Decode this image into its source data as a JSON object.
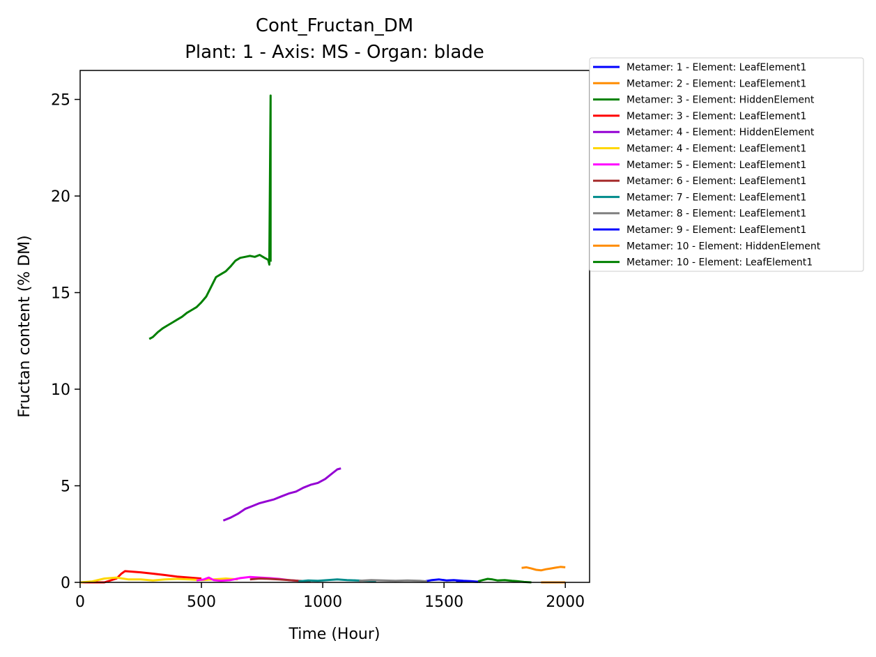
{
  "chart_data": {
    "type": "line",
    "title": "Cont_Fructan_DM",
    "subtitle": "Plant: 1 - Axis: MS - Organ: blade",
    "xlabel": "Time (Hour)",
    "ylabel": "Fructan content (% DM)",
    "xlim": [
      0,
      2100
    ],
    "ylim": [
      0,
      26.5
    ],
    "xticks": [
      0,
      500,
      1000,
      1500,
      2000
    ],
    "yticks": [
      0,
      5,
      10,
      15,
      20,
      25
    ],
    "grid": false,
    "legend_position": "outside-right-top",
    "series": [
      {
        "name": "Metamer: 1 - Element: LeafElement1",
        "color": "#0000ff",
        "x": [
          1420,
          1450,
          1480,
          1510,
          1540,
          1580,
          1610,
          1650
        ],
        "y": [
          0.05,
          0.12,
          0.15,
          0.1,
          0.12,
          0.08,
          0.06,
          0.02
        ]
      },
      {
        "name": "Metamer: 2 - Element: LeafElement1",
        "color": "#ff8c00",
        "x": [
          1820,
          1840,
          1860,
          1880,
          1900,
          1920,
          1940,
          1960,
          1980,
          2000
        ],
        "y": [
          0.75,
          0.78,
          0.72,
          0.65,
          0.62,
          0.68,
          0.72,
          0.76,
          0.8,
          0.78
        ]
      },
      {
        "name": "Metamer: 3 - Element: HiddenElement",
        "color": "#008000",
        "x": [
          1640,
          1660,
          1680,
          1700,
          1720,
          1750,
          1780,
          1800,
          1830,
          1860
        ],
        "y": [
          0.05,
          0.12,
          0.18,
          0.15,
          0.1,
          0.12,
          0.08,
          0.06,
          0.02,
          0.0
        ]
      },
      {
        "name": "Metamer: 3 - Element: LeafElement1",
        "color": "#ff0000",
        "x": [
          0,
          100,
          150,
          170,
          185,
          250,
          300,
          350,
          400,
          450,
          500
        ],
        "y": [
          0.0,
          0.0,
          0.2,
          0.45,
          0.58,
          0.52,
          0.45,
          0.38,
          0.3,
          0.25,
          0.2
        ]
      },
      {
        "name": "Metamer: 4 - Element: HiddenElement",
        "color": "#9400d3",
        "x": [
          590,
          620,
          650,
          680,
          710,
          740,
          770,
          800,
          830,
          860,
          890,
          920,
          950,
          980,
          1010,
          1040,
          1060,
          1075
        ],
        "y": [
          3.2,
          3.35,
          3.55,
          3.8,
          3.95,
          4.1,
          4.2,
          4.3,
          4.45,
          4.6,
          4.7,
          4.9,
          5.05,
          5.15,
          5.35,
          5.65,
          5.85,
          5.9
        ]
      },
      {
        "name": "Metamer: 4 - Element: LeafElement1",
        "color": "#ffd700",
        "x": [
          0,
          50,
          100,
          150,
          200,
          250,
          300,
          350,
          400,
          450,
          500,
          550,
          600,
          650
        ],
        "y": [
          0.0,
          0.05,
          0.2,
          0.25,
          0.15,
          0.15,
          0.1,
          0.15,
          0.18,
          0.15,
          0.12,
          0.15,
          0.2,
          0.15
        ]
      },
      {
        "name": "Metamer: 5 - Element: LeafElement1",
        "color": "#ff00ff",
        "x": [
          480,
          510,
          530,
          550,
          580,
          620,
          660,
          700,
          740,
          780,
          820,
          860,
          900
        ],
        "y": [
          0.1,
          0.15,
          0.25,
          0.12,
          0.08,
          0.12,
          0.22,
          0.28,
          0.25,
          0.22,
          0.18,
          0.12,
          0.08
        ]
      },
      {
        "name": "Metamer: 6 - Element: LeafElement1",
        "color": "#a52a2a",
        "x": [
          700,
          740,
          780,
          820,
          860,
          900,
          950
        ],
        "y": [
          0.15,
          0.2,
          0.18,
          0.15,
          0.12,
          0.08,
          0.05
        ]
      },
      {
        "name": "Metamer: 7 - Element: LeafElement1",
        "color": "#008b8b",
        "x": [
          900,
          940,
          980,
          1020,
          1060,
          1100,
          1140,
          1180,
          1220
        ],
        "y": [
          0.05,
          0.1,
          0.08,
          0.12,
          0.15,
          0.12,
          0.1,
          0.08,
          0.06
        ]
      },
      {
        "name": "Metamer: 8 - Element: LeafElement1",
        "color": "#808080",
        "x": [
          1150,
          1200,
          1250,
          1300,
          1350,
          1400,
          1430
        ],
        "y": [
          0.08,
          0.12,
          0.1,
          0.08,
          0.1,
          0.08,
          0.05
        ]
      },
      {
        "name": "Metamer: 9 - Element: LeafElement1",
        "color": "#0000ff",
        "x": [
          1550,
          1580,
          1610,
          1640
        ],
        "y": [
          0.05,
          0.06,
          0.04,
          0.02
        ]
      },
      {
        "name": "Metamer: 10 - Element: HiddenElement",
        "color": "#ff8c00",
        "x": [
          1900,
          1950,
          2000
        ],
        "y": [
          0.0,
          0.0,
          0.0
        ]
      },
      {
        "name": "Metamer: 10 - Element: LeafElement1",
        "color": "#008000",
        "x": [
          285,
          300,
          320,
          340,
          360,
          380,
          400,
          420,
          440,
          460,
          480,
          500,
          520,
          540,
          560,
          580,
          600,
          620,
          640,
          660,
          680,
          700,
          720,
          740,
          760,
          775,
          780,
          780,
          785,
          785
        ],
        "y": [
          12.6,
          12.7,
          12.95,
          13.15,
          13.3,
          13.45,
          13.6,
          13.75,
          13.95,
          14.1,
          14.25,
          14.5,
          14.8,
          15.3,
          15.8,
          15.95,
          16.1,
          16.35,
          16.65,
          16.8,
          16.85,
          16.9,
          16.85,
          16.95,
          16.8,
          16.7,
          16.45,
          16.9,
          25.2,
          16.6
        ]
      }
    ]
  }
}
